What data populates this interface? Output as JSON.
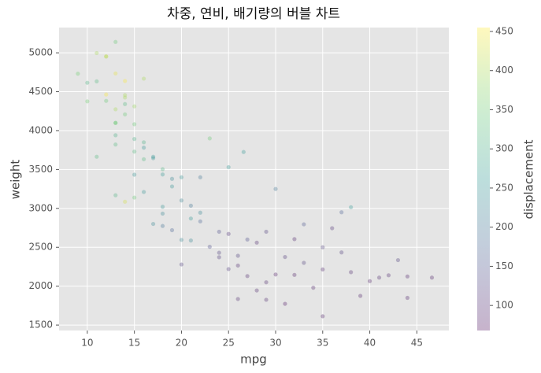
{
  "chart_data": {
    "type": "scatter",
    "title": "차중, 연비, 배기량의 버블 차트",
    "xlabel": "mpg",
    "ylabel": "weight",
    "colorbar_label": "displacement",
    "colormap": "viridis",
    "alpha": 0.3,
    "grid": true,
    "x": [
      9,
      10,
      10,
      11,
      11,
      11,
      12,
      12,
      12,
      12,
      13,
      13,
      13,
      13,
      13,
      13,
      13,
      13,
      14,
      14,
      14,
      14,
      14,
      14,
      15,
      15,
      15,
      15,
      15,
      15,
      16,
      16,
      16,
      16,
      16,
      17,
      17,
      17,
      18,
      18,
      18,
      18,
      18,
      19,
      19,
      19,
      20,
      20,
      20,
      21,
      21,
      21,
      22,
      22,
      23,
      23,
      24,
      24,
      25,
      25,
      25,
      26,
      26,
      26,
      27,
      26.6,
      28,
      28,
      29,
      29,
      30,
      30,
      31,
      31,
      32,
      32,
      33,
      34,
      35,
      35,
      36,
      37,
      37,
      38,
      38,
      39,
      40,
      41,
      42,
      43,
      44,
      44,
      46.6,
      35,
      33,
      29,
      27,
      24,
      22,
      20
    ],
    "values": [
      4732,
      4615,
      4376,
      4997,
      4633,
      3664,
      4955,
      4951,
      4382,
      4464,
      5140,
      4735,
      4274,
      4098,
      3821,
      3169,
      4100,
      3940,
      4638,
      4457,
      4341,
      4209,
      3086,
      4425,
      4312,
      4082,
      3892,
      3730,
      3433,
      3139,
      4668,
      3850,
      3781,
      3632,
      3211,
      3664,
      3645,
      2800,
      3436,
      3504,
      3021,
      2774,
      2933,
      3282,
      2720,
      3380,
      2595,
      3102,
      2279,
      2587,
      2870,
      3035,
      2833,
      2945,
      3900,
      2506,
      2372,
      2430,
      2672,
      3530,
      2220,
      1835,
      2265,
      2391,
      2130,
      3725,
      2560,
      1945,
      1825,
      2050,
      2150,
      3250,
      2375,
      1773,
      2145,
      2605,
      2795,
      1980,
      2215,
      1613,
      2745,
      2950,
      2434,
      3015,
      2180,
      1875,
      2065,
      2110,
      2140,
      2335,
      1850,
      2125,
      2110,
      2500,
      2300,
      2700,
      2600,
      2700,
      3400,
      3400
    ],
    "color_values": [
      360,
      307,
      360,
      400,
      318,
      318,
      429,
      400,
      350,
      455,
      350,
      440,
      400,
      351,
      318,
      307,
      350,
      302,
      455,
      400,
      318,
      350,
      429,
      400,
      390,
      350,
      302,
      318,
      250,
      350,
      400,
      302,
      250,
      318,
      250,
      258,
      250,
      231,
      258,
      307,
      250,
      199,
      232,
      250,
      171,
      231,
      232,
      225,
      122,
      232,
      258,
      200,
      171,
      232,
      350,
      140,
      113,
      121,
      107,
      260,
      116,
      97,
      97,
      121,
      97,
      260,
      98,
      97,
      97,
      97,
      79,
      200,
      112,
      76,
      85,
      91,
      151,
      91,
      91,
      85,
      105,
      168,
      119,
      262,
      98,
      86,
      85,
      98,
      98,
      120,
      90,
      91,
      86,
      121,
      121,
      119,
      140,
      140,
      200,
      250
    ],
    "xlim": [
      7,
      48.4
    ],
    "xticks": [
      10,
      15,
      20,
      25,
      30,
      35,
      40,
      45
    ],
    "ylim": [
      1430,
      5325
    ],
    "yticks": [
      1500,
      2000,
      2500,
      3000,
      3500,
      4000,
      4500,
      5000
    ],
    "clim": [
      68,
      455
    ],
    "cticks": [
      100,
      150,
      200,
      250,
      300,
      350,
      400,
      450
    ]
  }
}
